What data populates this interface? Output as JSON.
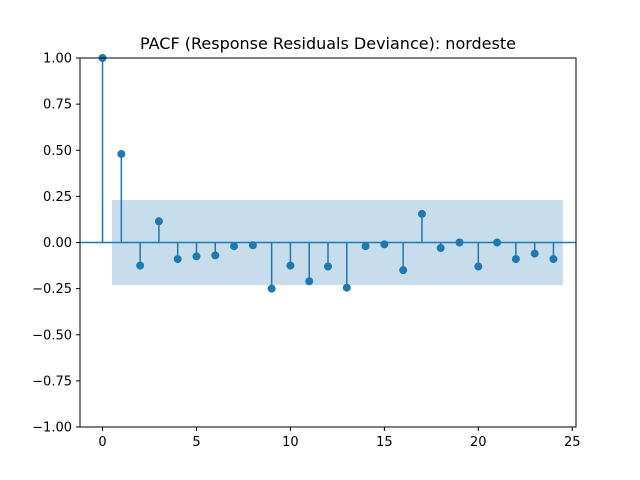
{
  "chart_data": {
    "type": "stem",
    "title": "PACF (Response Residuals Deviance): nordeste",
    "xlabel": "",
    "ylabel": "",
    "xlim": [
      -1.2,
      25.2
    ],
    "ylim": [
      -1.0,
      1.0
    ],
    "x_ticks": [
      0,
      5,
      10,
      15,
      20,
      25
    ],
    "y_ticks": [
      -1.0,
      -0.75,
      -0.5,
      -0.25,
      0.0,
      0.25,
      0.5,
      0.75,
      1.0
    ],
    "x_tick_labels": [
      "0",
      "5",
      "10",
      "15",
      "20",
      "25"
    ],
    "y_tick_labels": [
      "−1.00",
      "−0.75",
      "−0.50",
      "−0.25",
      "0.00",
      "0.25",
      "0.50",
      "0.75",
      "1.00"
    ],
    "lags": [
      0,
      1,
      2,
      3,
      4,
      5,
      6,
      7,
      8,
      9,
      10,
      11,
      12,
      13,
      14,
      15,
      16,
      17,
      18,
      19,
      20,
      21,
      22,
      23,
      24
    ],
    "values": [
      1.0,
      0.48,
      -0.125,
      0.115,
      -0.09,
      -0.075,
      -0.07,
      -0.02,
      -0.015,
      -0.25,
      -0.125,
      -0.21,
      -0.13,
      -0.245,
      -0.02,
      -0.01,
      -0.15,
      0.155,
      -0.03,
      0.0,
      -0.13,
      0.0,
      -0.09,
      -0.06,
      -0.09
    ],
    "confidence_band": {
      "x_range": [
        0.5,
        24.5
      ],
      "lower": -0.23,
      "upper": 0.23
    },
    "grid": false,
    "colors": {
      "stem": "#1f77b4",
      "band": "#1f77b4",
      "baseline": "#1f77b4"
    }
  }
}
